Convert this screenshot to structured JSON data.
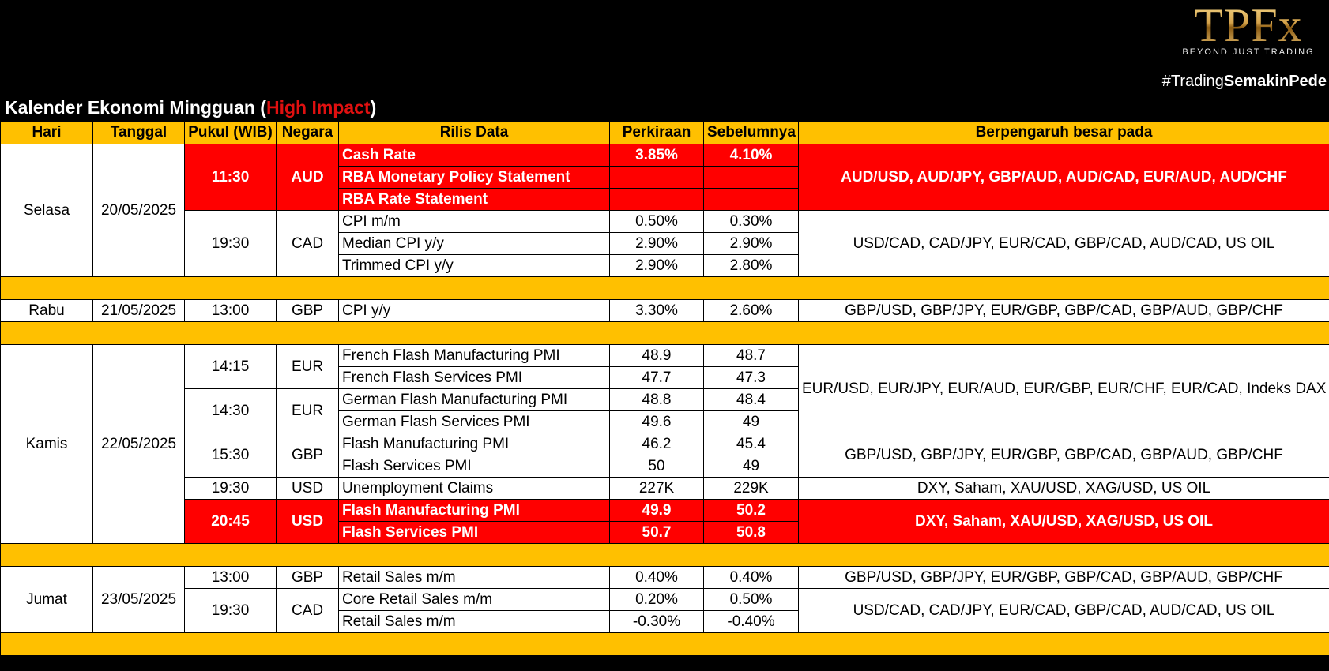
{
  "brand": {
    "logo_text": "TPFx",
    "tagline": "BEYOND JUST TRADING",
    "hashtag_prefix": "#Trading",
    "hashtag_bold": "SemakinPede"
  },
  "title": {
    "main": "Kalender Ekonomi Mingguan (",
    "highlight": "High Impact",
    "close": ")"
  },
  "colors": {
    "header_bg": "#ffc000",
    "high_impact": "#ff0000",
    "background": "#000000"
  },
  "columns": [
    "Hari",
    "Tanggal",
    "Pukul (WIB)",
    "Negara",
    "Rilis Data",
    "Perkiraan",
    "Sebelumnya",
    "Berpengaruh besar pada"
  ],
  "days": {
    "selasa": {
      "day": "Selasa",
      "date": "20/05/2025",
      "g1": {
        "time": "11:30",
        "country": "AUD",
        "impact": "AUD/USD, AUD/JPY, GBP/AUD, AUD/CAD, EUR/AUD, AUD/CHF",
        "rows": [
          {
            "name": "Cash Rate",
            "forecast": "3.85%",
            "previous": "4.10%"
          },
          {
            "name": "RBA Monetary Policy Statement",
            "forecast": "",
            "previous": ""
          },
          {
            "name": "RBA Rate Statement",
            "forecast": "",
            "previous": ""
          }
        ]
      },
      "g2": {
        "time": "19:30",
        "country": "CAD",
        "impact": "USD/CAD, CAD/JPY, EUR/CAD, GBP/CAD, AUD/CAD, US OIL",
        "rows": [
          {
            "name": "CPI m/m",
            "forecast": "0.50%",
            "previous": "0.30%"
          },
          {
            "name": "Median CPI y/y",
            "forecast": "2.90%",
            "previous": "2.90%"
          },
          {
            "name": "Trimmed CPI y/y",
            "forecast": "2.90%",
            "previous": "2.80%"
          }
        ]
      }
    },
    "rabu": {
      "day": "Rabu",
      "date": "21/05/2025",
      "g1": {
        "time": "13:00",
        "country": "GBP",
        "impact": "GBP/USD, GBP/JPY, EUR/GBP, GBP/CAD, GBP/AUD, GBP/CHF",
        "rows": [
          {
            "name": "CPI y/y",
            "forecast": "3.30%",
            "previous": "2.60%"
          }
        ]
      }
    },
    "kamis": {
      "day": "Kamis",
      "date": "22/05/2025",
      "impact_eur": "EUR/USD, EUR/JPY, EUR/AUD, EUR/GBP, EUR/CHF, EUR/CAD, Indeks DAX",
      "g1": {
        "time": "14:15",
        "country": "EUR",
        "rows": [
          {
            "name": "French Flash Manufacturing PMI",
            "forecast": "48.9",
            "previous": "48.7"
          },
          {
            "name": "French Flash Services PMI",
            "forecast": "47.7",
            "previous": "47.3"
          }
        ]
      },
      "g2": {
        "time": "14:30",
        "country": "EUR",
        "rows": [
          {
            "name": "German Flash Manufacturing PMI",
            "forecast": "48.8",
            "previous": "48.4"
          },
          {
            "name": "German Flash Services PMI",
            "forecast": "49.6",
            "previous": "49"
          }
        ]
      },
      "g3": {
        "time": "15:30",
        "country": "GBP",
        "impact": "GBP/USD, GBP/JPY, EUR/GBP, GBP/CAD, GBP/AUD, GBP/CHF",
        "rows": [
          {
            "name": "Flash Manufacturing PMI",
            "forecast": "46.2",
            "previous": "45.4"
          },
          {
            "name": "Flash Services PMI",
            "forecast": "50",
            "previous": "49"
          }
        ]
      },
      "g4": {
        "time": "19:30",
        "country": "USD",
        "impact": "DXY, Saham, XAU/USD, XAG/USD, US OIL",
        "rows": [
          {
            "name": "Unemployment Claims",
            "forecast": "227K",
            "previous": "229K"
          }
        ]
      },
      "g5": {
        "time": "20:45",
        "country": "USD",
        "impact": "DXY, Saham, XAU/USD, XAG/USD, US OIL",
        "rows": [
          {
            "name": "Flash Manufacturing PMI",
            "forecast": "49.9",
            "previous": "50.2"
          },
          {
            "name": "Flash Services PMI",
            "forecast": "50.7",
            "previous": "50.8"
          }
        ]
      }
    },
    "jumat": {
      "day": "Jumat",
      "date": "23/05/2025",
      "g1": {
        "time": "13:00",
        "country": "GBP",
        "impact": "GBP/USD, GBP/JPY, EUR/GBP, GBP/CAD, GBP/AUD, GBP/CHF",
        "rows": [
          {
            "name": "Retail Sales m/m",
            "forecast": "0.40%",
            "previous": "0.40%"
          }
        ]
      },
      "g2": {
        "time": "19:30",
        "country": "CAD",
        "impact": "USD/CAD, CAD/JPY, EUR/CAD, GBP/CAD, AUD/CAD, US OIL",
        "rows": [
          {
            "name": "Core Retail Sales m/m",
            "forecast": "0.20%",
            "previous": "0.50%"
          },
          {
            "name": "Retail Sales m/m",
            "forecast": "-0.30%",
            "previous": "-0.40%"
          }
        ]
      }
    }
  }
}
